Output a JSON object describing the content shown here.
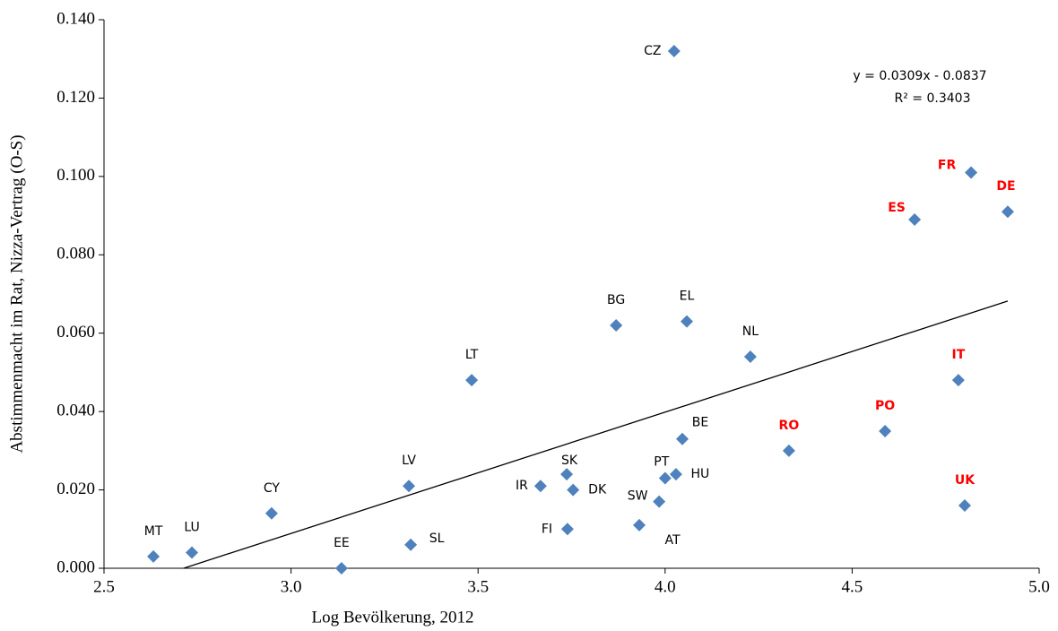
{
  "chart_data": {
    "type": "scatter",
    "x_label": "Log Bevölkerung, 2012",
    "y_label": "Abstimmenmacht im Rat, Nizza-Vertrag (O-S)",
    "annotation": [
      "y = 0.0309x - 0.0837",
      "R² = 0.3403"
    ],
    "color": "#4f81bd",
    "label_color": "#000000",
    "highlight_color": "#ff0000",
    "labels": [
      "MT",
      "LU",
      "CY",
      "EE",
      "SL",
      "LV",
      "LT",
      "IR",
      "SK",
      "DK",
      "FI",
      "BG",
      "AT",
      "SW",
      "PT",
      "HU",
      "CZ",
      "BE",
      "EL",
      "NL",
      "RO",
      "PO",
      "ES",
      "IT",
      "UK",
      "FR",
      "DE"
    ],
    "highlighted": [
      "RO",
      "PO",
      "ES",
      "IT",
      "UK",
      "FR",
      "DE"
    ],
    "x": [
      2.632,
      2.735,
      2.948,
      3.135,
      3.32,
      3.315,
      3.483,
      3.667,
      3.737,
      3.754,
      3.739,
      3.869,
      3.931,
      3.984,
      4.0,
      4.029,
      4.024,
      4.046,
      4.058,
      4.228,
      4.331,
      4.588,
      4.667,
      4.784,
      4.801,
      4.818,
      4.916
    ],
    "values": [
      0.003,
      0.004,
      0.014,
      0.0,
      0.006,
      0.021,
      0.048,
      0.021,
      0.024,
      0.02,
      0.01,
      0.062,
      0.011,
      0.017,
      0.023,
      0.024,
      0.132,
      0.033,
      0.063,
      0.054,
      0.03,
      0.035,
      0.089,
      0.048,
      0.016,
      0.101,
      0.091
    ],
    "trendline": {
      "x": [
        2.713,
        4.916
      ],
      "y": [
        0,
        0.0682
      ],
      "color": "#000000"
    },
    "xlim": [
      2.5,
      5.0
    ],
    "xticks": [
      {
        "value": 2.5,
        "label": "2.5"
      },
      {
        "value": 3.0,
        "label": "3.0"
      },
      {
        "value": 3.5,
        "label": "3.5"
      },
      {
        "value": 4.0,
        "label": "4.0"
      },
      {
        "value": 4.5,
        "label": "4.5"
      },
      {
        "value": 5.0,
        "label": "5.0"
      }
    ],
    "ylim": [
      0,
      0.14
    ],
    "yticks": [
      {
        "value": 0,
        "label": "0.000"
      },
      {
        "value": 0.02,
        "label": "0.020"
      },
      {
        "value": 0.04,
        "label": "0.040"
      },
      {
        "value": 0.06,
        "label": "0.060"
      },
      {
        "value": 0.08,
        "label": "0.080"
      },
      {
        "value": 0.1,
        "label": "0.100"
      },
      {
        "value": 0.12,
        "label": "0.120"
      },
      {
        "value": 0.14,
        "label": "0.140"
      }
    ],
    "grid": false
  }
}
